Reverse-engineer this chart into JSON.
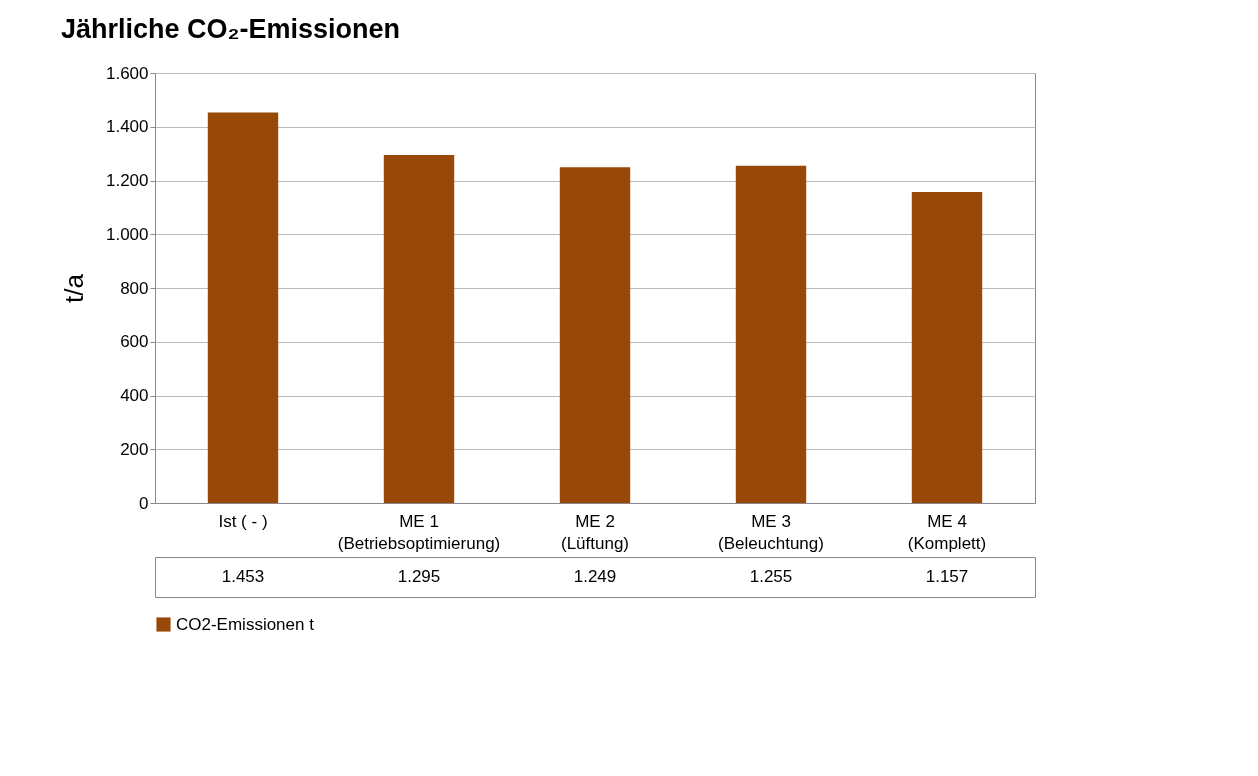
{
  "chart_data": {
    "type": "bar",
    "title": "Jährliche CO₂-Emissionen",
    "ylabel": "t/a",
    "categories": [
      "Ist ( - )",
      "ME 1 (Betriebsoptimierung)",
      "ME 2 (Lüftung)",
      "ME 3 (Beleuchtung)",
      "ME 4 (Komplett)"
    ],
    "series": [
      {
        "name": "CO2-Emissionen t",
        "color": "#984807",
        "values": [
          1453,
          1295,
          1249,
          1255,
          1157
        ],
        "value_labels": [
          "1.453",
          "1.295",
          "1.249",
          "1.255",
          "1.157"
        ]
      }
    ],
    "ylim": [
      0,
      1600
    ],
    "yticks": [
      {
        "value": 0,
        "label": "0"
      },
      {
        "value": 200,
        "label": "200"
      },
      {
        "value": 400,
        "label": "400"
      },
      {
        "value": 600,
        "label": "600"
      },
      {
        "value": 800,
        "label": "800"
      },
      {
        "value": 1000,
        "label": "1.000"
      },
      {
        "value": 1200,
        "label": "1.200"
      },
      {
        "value": 1400,
        "label": "1.400"
      },
      {
        "value": 1600,
        "label": "1.600"
      }
    ],
    "grid": "y",
    "legend": "bottom"
  }
}
